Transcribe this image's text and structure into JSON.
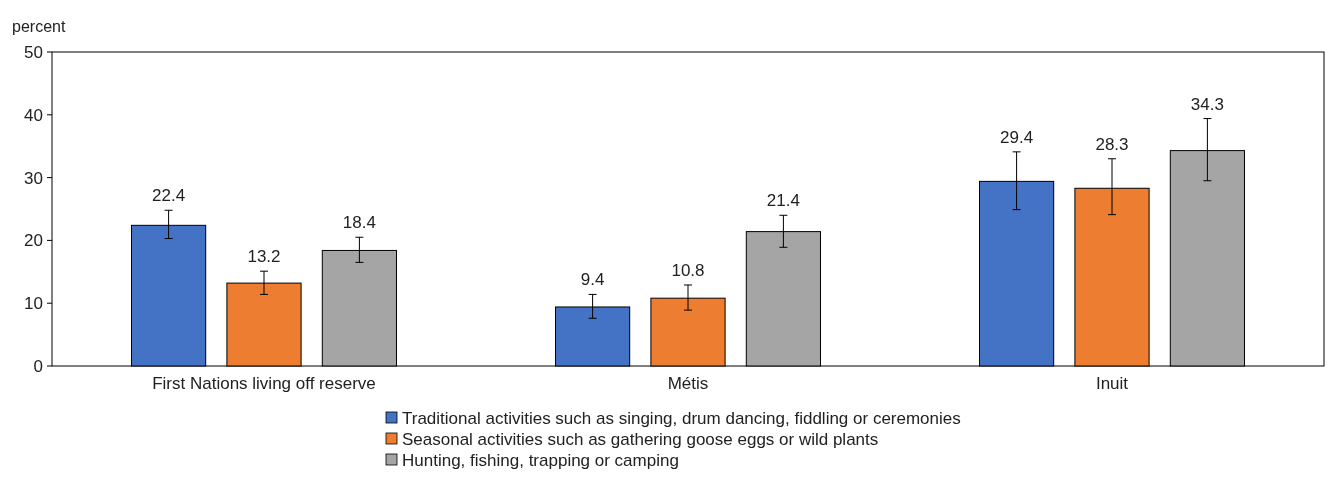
{
  "chart_data": {
    "type": "bar",
    "ylabel": "percent",
    "categories": [
      "First Nations living off reserve",
      "Métis",
      "Inuit"
    ],
    "series": [
      {
        "name": "Traditional activities such as singing, drum dancing, fiddling or ceremonies",
        "color": "#4472c4",
        "values": [
          22.4,
          9.4,
          29.4
        ],
        "errors": [
          [
            20.3,
            24.8
          ],
          [
            7.6,
            11.4
          ],
          [
            24.9,
            34.1
          ]
        ]
      },
      {
        "name": "Seasonal activities such as gathering goose eggs or wild plants",
        "color": "#ed7d31",
        "values": [
          13.2,
          10.8,
          28.3
        ],
        "errors": [
          [
            11.4,
            15.1
          ],
          [
            8.9,
            12.9
          ],
          [
            24.1,
            33.0
          ]
        ]
      },
      {
        "name": "Hunting, fishing, trapping or camping",
        "color": "#a5a5a5",
        "values": [
          18.4,
          21.4,
          34.3
        ],
        "errors": [
          [
            16.5,
            20.5
          ],
          [
            18.9,
            24.0
          ],
          [
            29.5,
            39.4
          ]
        ]
      }
    ],
    "ylim": [
      0,
      50
    ],
    "yticks": [
      0,
      10,
      20,
      30,
      40,
      50
    ],
    "data_labels": true,
    "legend": "bottom",
    "grid": false
  }
}
